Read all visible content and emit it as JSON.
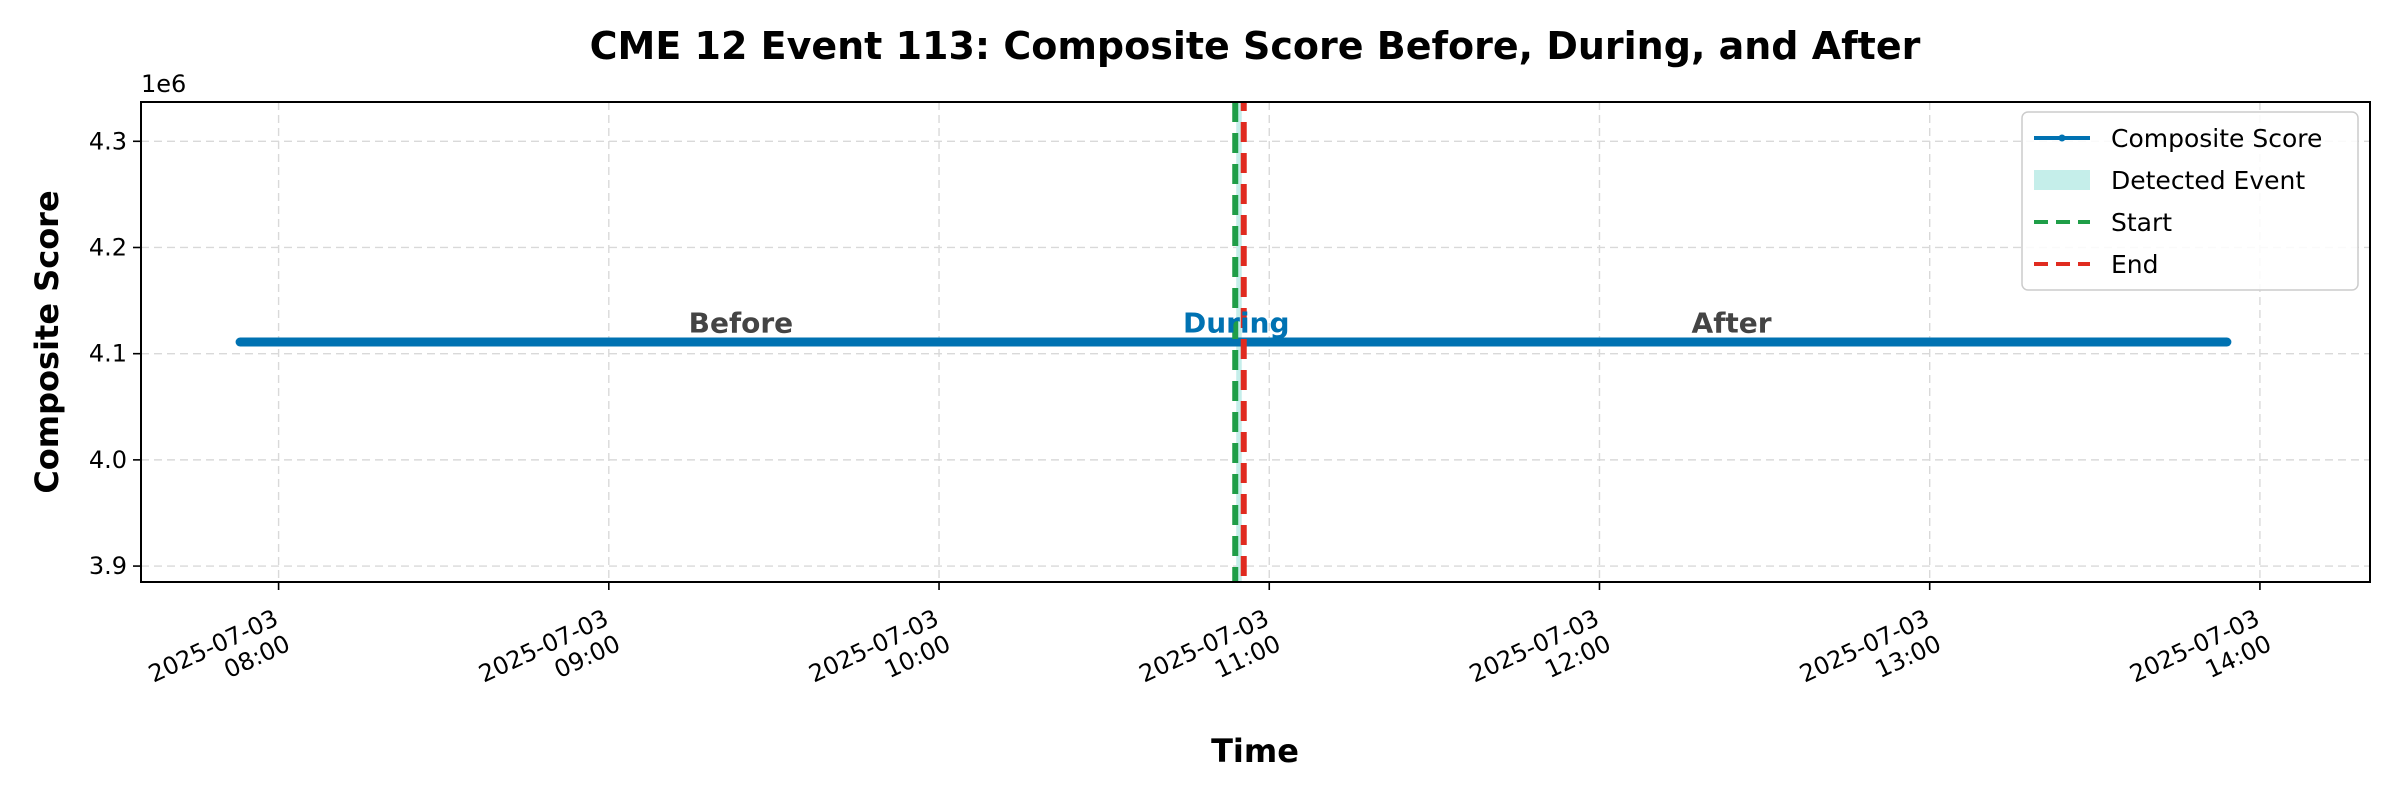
{
  "chart_data": {
    "type": "line",
    "title": "CME 12 Event 113: Composite Score Before, During, and After",
    "xlabel": "Time",
    "ylabel": "Composite Score",
    "y_offset_label": "1e6",
    "ylim": [
      3.885,
      4.337
    ],
    "y_ticks": [
      3.9,
      4.0,
      4.1,
      4.2,
      4.3
    ],
    "y_tick_labels": [
      "3.9",
      "4.0",
      "4.1",
      "4.2",
      "4.3"
    ],
    "xlim": [
      "2025-07-03 07:35",
      "2025-07-03 14:20"
    ],
    "x_ticks": [
      "2025-07-03 08:00",
      "2025-07-03 09:00",
      "2025-07-03 10:00",
      "2025-07-03 11:00",
      "2025-07-03 12:00",
      "2025-07-03 13:00",
      "2025-07-03 14:00"
    ],
    "x_tick_labels": [
      [
        "2025-07-03",
        "08:00"
      ],
      [
        "2025-07-03",
        "09:00"
      ],
      [
        "2025-07-03",
        "10:00"
      ],
      [
        "2025-07-03",
        "11:00"
      ],
      [
        "2025-07-03",
        "12:00"
      ],
      [
        "2025-07-03",
        "13:00"
      ],
      [
        "2025-07-03",
        "14:00"
      ]
    ],
    "grid": true,
    "legend_position": "top-right",
    "series": [
      {
        "name": "Composite Score",
        "color": "#0072b2",
        "x": [
          "2025-07-03 07:53",
          "2025-07-03 13:54"
        ],
        "y": [
          4.111,
          4.111
        ]
      }
    ],
    "event_band": {
      "name": "Detected Event",
      "color": "#c5eeea",
      "start": "2025-07-03 10:54",
      "end": "2025-07-03 10:55"
    },
    "vlines": [
      {
        "name": "Start",
        "x": "2025-07-03 10:54",
        "color": "#1f9e48"
      },
      {
        "name": "End",
        "x": "2025-07-03 10:55",
        "color": "#e02b20"
      }
    ],
    "annotations": [
      {
        "text": "Before",
        "x": "2025-07-03 09:24",
        "y": 4.118,
        "color": "#444444"
      },
      {
        "text": "During",
        "x": "2025-07-03 10:54",
        "y": 4.118,
        "color": "#0072b2"
      },
      {
        "text": "After",
        "x": "2025-07-03 12:24",
        "y": 4.118,
        "color": "#444444"
      }
    ],
    "legend": [
      "Composite Score",
      "Detected Event",
      "Start",
      "End"
    ]
  }
}
